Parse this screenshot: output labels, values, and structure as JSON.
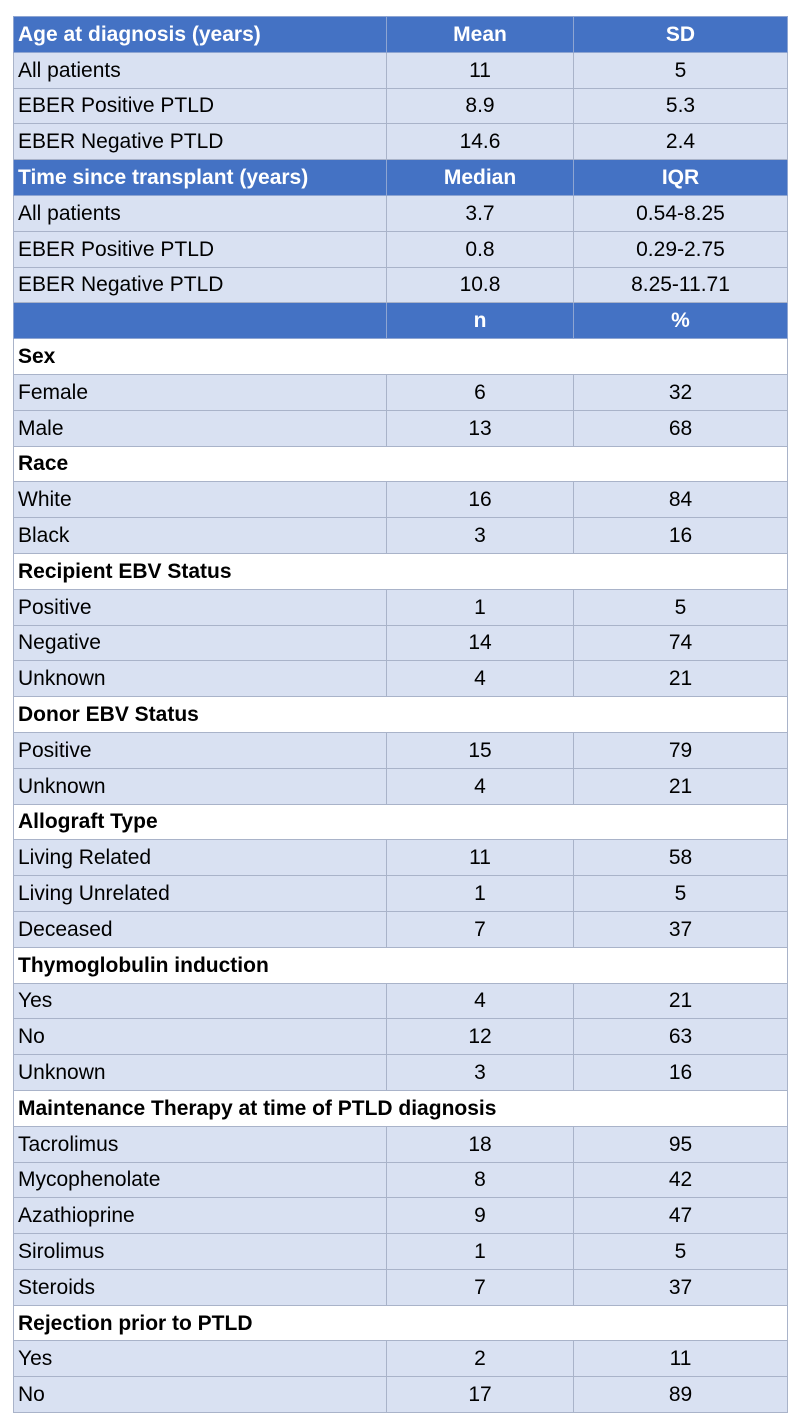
{
  "blocks": [
    {
      "type": "header",
      "label": "Age at diagnosis (years)",
      "col2": "Mean",
      "col3": "SD",
      "rows": [
        {
          "label": "All patients",
          "v1": "11",
          "v2": "5"
        },
        {
          "label": "EBER Positive PTLD",
          "v1": "8.9",
          "v2": "5.3"
        },
        {
          "label": "EBER Negative PTLD",
          "v1": "14.6",
          "v2": "2.4"
        }
      ]
    },
    {
      "type": "header",
      "label": "Time since transplant (years)",
      "col2": "Median",
      "col3": "IQR",
      "rows": [
        {
          "label": "All patients",
          "v1": "3.7",
          "v2": "0.54-8.25"
        },
        {
          "label": "EBER Positive PTLD",
          "v1": "0.8",
          "v2": "0.29-2.75"
        },
        {
          "label": "EBER Negative PTLD",
          "v1": "10.8",
          "v2": "8.25-11.71"
        }
      ]
    },
    {
      "type": "header",
      "label": "",
      "col2": "n",
      "col3": "%",
      "rows": []
    },
    {
      "type": "section",
      "label": "Sex",
      "rows": [
        {
          "label": "Female",
          "v1": "6",
          "v2": "32"
        },
        {
          "label": "Male",
          "v1": "13",
          "v2": "68"
        }
      ]
    },
    {
      "type": "section",
      "label": "Race",
      "rows": [
        {
          "label": "White",
          "v1": "16",
          "v2": "84"
        },
        {
          "label": "Black",
          "v1": "3",
          "v2": "16"
        }
      ]
    },
    {
      "type": "section",
      "label": "Recipient EBV Status",
      "rows": [
        {
          "label": "Positive",
          "v1": "1",
          "v2": "5"
        },
        {
          "label": "Negative",
          "v1": "14",
          "v2": "74"
        },
        {
          "label": "Unknown",
          "v1": "4",
          "v2": "21"
        }
      ]
    },
    {
      "type": "section",
      "label": "Donor EBV Status",
      "rows": [
        {
          "label": "Positive",
          "v1": "15",
          "v2": "79"
        },
        {
          "label": "Unknown",
          "v1": "4",
          "v2": "21"
        }
      ]
    },
    {
      "type": "section",
      "label": "Allograft Type",
      "rows": [
        {
          "label": "Living Related",
          "v1": "11",
          "v2": "58"
        },
        {
          "label": "Living Unrelated",
          "v1": "1",
          "v2": "5"
        },
        {
          "label": "Deceased",
          "v1": "7",
          "v2": "37"
        }
      ]
    },
    {
      "type": "section",
      "label": "Thymoglobulin induction",
      "rows": [
        {
          "label": "Yes",
          "v1": "4",
          "v2": "21"
        },
        {
          "label": "No",
          "v1": "12",
          "v2": "63"
        },
        {
          "label": "Unknown",
          "v1": "3",
          "v2": "16"
        }
      ]
    },
    {
      "type": "section",
      "label": "Maintenance Therapy at time of PTLD diagnosis",
      "rows": [
        {
          "label": "Tacrolimus",
          "v1": "18",
          "v2": "95"
        },
        {
          "label": "Mycophenolate",
          "v1": "8",
          "v2": "42"
        },
        {
          "label": "Azathioprine",
          "v1": "9",
          "v2": "47"
        },
        {
          "label": "Sirolimus",
          "v1": "1",
          "v2": "5"
        },
        {
          "label": "Steroids",
          "v1": "7",
          "v2": "37"
        }
      ]
    },
    {
      "type": "section",
      "label": "Rejection prior to PTLD",
      "rows": [
        {
          "label": "Yes",
          "v1": "2",
          "v2": "11"
        },
        {
          "label": "No",
          "v1": "17",
          "v2": "89"
        }
      ]
    }
  ]
}
